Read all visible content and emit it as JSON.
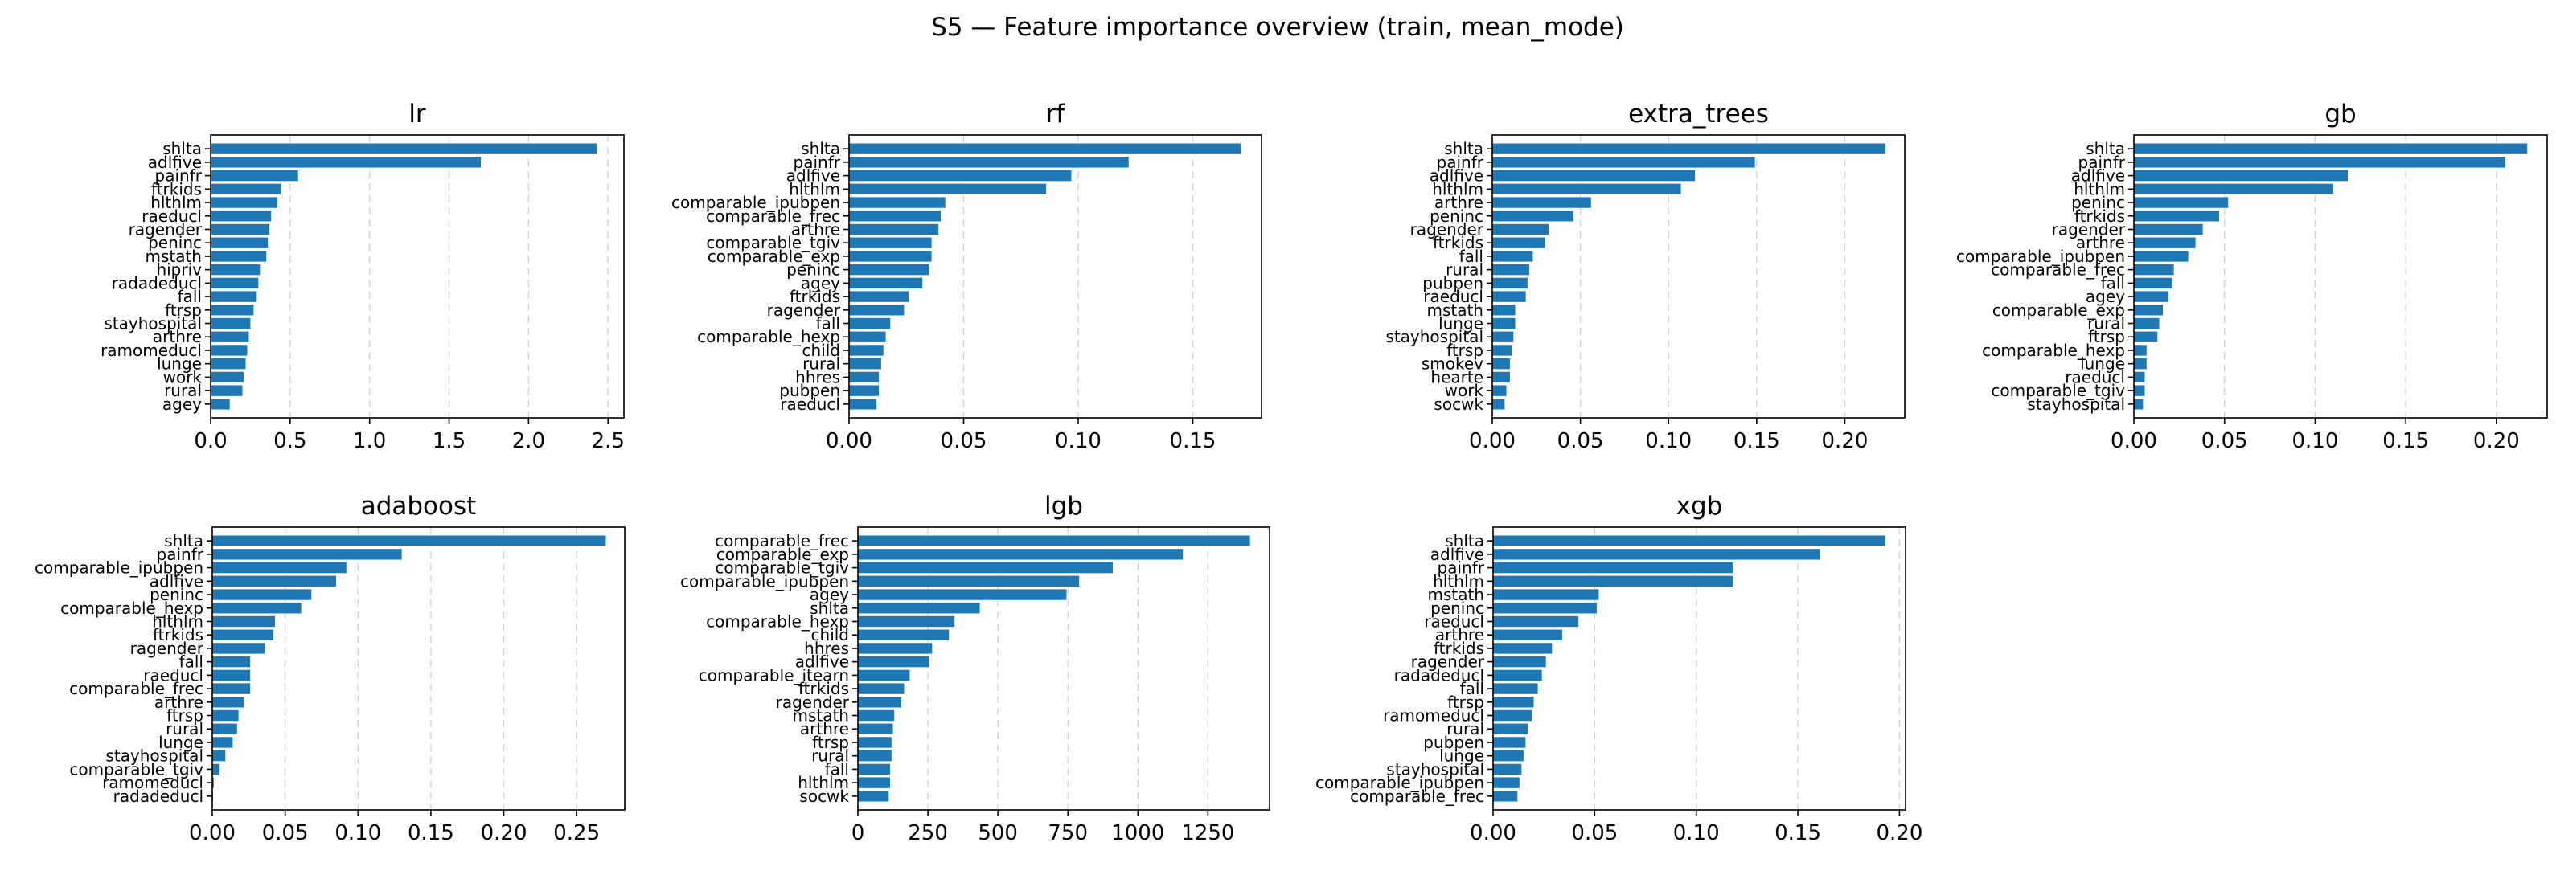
{
  "figure": {
    "title": "S5 — Feature importance overview (train, mean_mode)",
    "bar_color": "#1f77b4"
  },
  "chart_data": [
    {
      "type": "bar",
      "orientation": "horizontal",
      "title": "lr",
      "categories": [
        "shlta",
        "adlfive",
        "painfr",
        "ftrkids",
        "hlthlm",
        "raeducl",
        "ragender",
        "peninc",
        "mstath",
        "hipriv",
        "radadeducl",
        "fall",
        "ftrsp",
        "stayhospital",
        "arthre",
        "ramomeducl",
        "lunge",
        "work",
        "rural",
        "agey"
      ],
      "values": [
        2.43,
        1.7,
        0.55,
        0.44,
        0.42,
        0.38,
        0.37,
        0.36,
        0.35,
        0.31,
        0.3,
        0.29,
        0.27,
        0.25,
        0.24,
        0.23,
        0.22,
        0.21,
        0.2,
        0.12
      ],
      "xlim": [
        0,
        2.6
      ],
      "ticks": [
        0,
        0.5,
        1.0,
        1.5,
        2.0,
        2.5
      ],
      "tick_labels": [
        "0.0",
        "0.5",
        "1.0",
        "1.5",
        "2.0",
        "2.5"
      ],
      "grid": "x"
    },
    {
      "type": "bar",
      "orientation": "horizontal",
      "title": "rf",
      "categories": [
        "shlta",
        "painfr",
        "adlfive",
        "hlthlm",
        "comparable_ipubpen",
        "comparable_frec",
        "arthre",
        "comparable_tgiv",
        "comparable_exp",
        "peninc",
        "agey",
        "ftrkids",
        "ragender",
        "fall",
        "comparable_hexp",
        "child",
        "rural",
        "hhres",
        "pubpen",
        "raeducl"
      ],
      "values": [
        0.171,
        0.122,
        0.097,
        0.086,
        0.042,
        0.04,
        0.039,
        0.036,
        0.036,
        0.035,
        0.032,
        0.026,
        0.024,
        0.018,
        0.016,
        0.015,
        0.014,
        0.013,
        0.013,
        0.012
      ],
      "xlim": [
        0,
        0.18
      ],
      "ticks": [
        0,
        0.05,
        0.1,
        0.15
      ],
      "tick_labels": [
        "0.00",
        "0.05",
        "0.10",
        "0.15"
      ],
      "grid": "x"
    },
    {
      "type": "bar",
      "orientation": "horizontal",
      "title": "extra_trees",
      "categories": [
        "shlta",
        "painfr",
        "adlfive",
        "hlthlm",
        "arthre",
        "peninc",
        "ragender",
        "ftrkids",
        "fall",
        "rural",
        "pubpen",
        "raeducl",
        "mstath",
        "lunge",
        "stayhospital",
        "ftrsp",
        "smokev",
        "hearte",
        "work",
        "socwk"
      ],
      "values": [
        0.223,
        0.149,
        0.115,
        0.107,
        0.056,
        0.046,
        0.032,
        0.03,
        0.023,
        0.021,
        0.02,
        0.019,
        0.013,
        0.013,
        0.012,
        0.011,
        0.01,
        0.01,
        0.008,
        0.007
      ],
      "xlim": [
        0,
        0.234
      ],
      "ticks": [
        0,
        0.05,
        0.1,
        0.15,
        0.2
      ],
      "tick_labels": [
        "0.00",
        "0.05",
        "0.10",
        "0.15",
        "0.20"
      ],
      "grid": "x"
    },
    {
      "type": "bar",
      "orientation": "horizontal",
      "title": "gb",
      "categories": [
        "shlta",
        "painfr",
        "adlfive",
        "hlthlm",
        "peninc",
        "ftrkids",
        "ragender",
        "arthre",
        "comparable_ipubpen",
        "comparable_frec",
        "fall",
        "agey",
        "comparable_exp",
        "rural",
        "ftrsp",
        "comparable_hexp",
        "lunge",
        "raeducl",
        "comparable_tgiv",
        "stayhospital"
      ],
      "values": [
        0.217,
        0.205,
        0.118,
        0.11,
        0.052,
        0.047,
        0.038,
        0.034,
        0.03,
        0.022,
        0.021,
        0.019,
        0.016,
        0.014,
        0.013,
        0.007,
        0.007,
        0.006,
        0.006,
        0.005
      ],
      "xlim": [
        0,
        0.228
      ],
      "ticks": [
        0,
        0.05,
        0.1,
        0.15,
        0.2
      ],
      "tick_labels": [
        "0.00",
        "0.05",
        "0.10",
        "0.15",
        "0.20"
      ],
      "grid": "x"
    },
    {
      "type": "bar",
      "orientation": "horizontal",
      "title": "adaboost",
      "categories": [
        "shlta",
        "painfr",
        "comparable_ipubpen",
        "adlfive",
        "peninc",
        "comparable_hexp",
        "hlthlm",
        "ftrkids",
        "ragender",
        "fall",
        "raeducl",
        "comparable_frec",
        "arthre",
        "ftrsp",
        "rural",
        "lunge",
        "stayhospital",
        "comparable_tgiv",
        "ramomeducl",
        "radadeducl"
      ],
      "values": [
        0.27,
        0.13,
        0.092,
        0.085,
        0.068,
        0.061,
        0.043,
        0.042,
        0.036,
        0.026,
        0.026,
        0.026,
        0.022,
        0.018,
        0.017,
        0.014,
        0.009,
        0.005,
        0.001,
        0.0005
      ],
      "xlim": [
        0,
        0.283
      ],
      "ticks": [
        0,
        0.05,
        0.1,
        0.15,
        0.2,
        0.25
      ],
      "tick_labels": [
        "0.00",
        "0.05",
        "0.10",
        "0.15",
        "0.20",
        "0.25"
      ],
      "grid": "x"
    },
    {
      "type": "bar",
      "orientation": "horizontal",
      "title": "lgb",
      "categories": [
        "comparable_frec",
        "comparable_exp",
        "comparable_tgiv",
        "comparable_ipubpen",
        "agey",
        "shlta",
        "comparable_hexp",
        "child",
        "hhres",
        "adlfive",
        "comparable_itearn",
        "ftrkids",
        "ragender",
        "mstath",
        "arthre",
        "ftrsp",
        "rural",
        "fall",
        "hlthlm",
        "socwk"
      ],
      "values": [
        1400,
        1160,
        910,
        790,
        745,
        435,
        345,
        325,
        265,
        255,
        185,
        165,
        155,
        130,
        125,
        120,
        120,
        115,
        115,
        110
      ],
      "xlim": [
        0,
        1470
      ],
      "ticks": [
        0,
        250,
        500,
        750,
        1000,
        1250
      ],
      "tick_labels": [
        "0",
        "250",
        "500",
        "750",
        "1000",
        "1250"
      ],
      "grid": "x"
    },
    {
      "type": "bar",
      "orientation": "horizontal",
      "title": "xgb",
      "categories": [
        "shlta",
        "adlfive",
        "painfr",
        "hlthlm",
        "mstath",
        "peninc",
        "raeducl",
        "arthre",
        "ftrkids",
        "ragender",
        "radadeducl",
        "fall",
        "ftrsp",
        "ramomeducl",
        "rural",
        "pubpen",
        "lunge",
        "stayhospital",
        "comparable_ipubpen",
        "comparable_frec"
      ],
      "values": [
        0.193,
        0.161,
        0.118,
        0.118,
        0.052,
        0.051,
        0.042,
        0.034,
        0.029,
        0.026,
        0.024,
        0.022,
        0.02,
        0.019,
        0.017,
        0.016,
        0.015,
        0.014,
        0.013,
        0.012
      ],
      "xlim": [
        0,
        0.203
      ],
      "ticks": [
        0,
        0.05,
        0.1,
        0.15,
        0.2
      ],
      "tick_labels": [
        "0.00",
        "0.05",
        "0.10",
        "0.15",
        "0.20"
      ],
      "grid": "x"
    }
  ]
}
